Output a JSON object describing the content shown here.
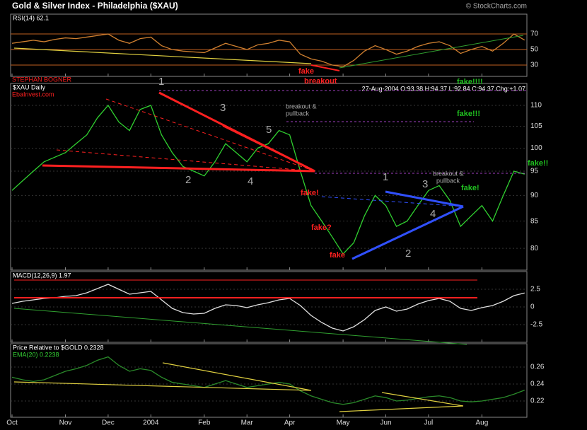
{
  "header": {
    "title": "Gold & Silver Index - Philadelphia ($XAU)",
    "copyright": "© StockCharts.com"
  },
  "annotations": [
    "STEPHAN BOGNER",
    "EbaInvest.com",
    "1",
    "2",
    "3",
    "4",
    "5",
    "breakout &",
    "pullback",
    "1",
    "2",
    "3",
    "4",
    "breakout &",
    "pullback",
    "fake",
    "breakout",
    "fake!",
    "fake?",
    "fake",
    "fake!!!!",
    "fake!!!",
    "fake!!",
    "fake!"
  ],
  "chart_data": [
    {
      "type": "line",
      "title": "RSI(14) 62.1",
      "categories": [
        "Oct",
        null,
        null,
        null,
        null,
        "Nov",
        null,
        null,
        null,
        "Dec",
        null,
        null,
        null,
        "2004",
        null,
        null,
        null,
        null,
        "Feb",
        null,
        null,
        null,
        "Mar",
        null,
        null,
        null,
        "Apr",
        null,
        null,
        null,
        null,
        "May",
        null,
        null,
        null,
        "Jun",
        null,
        null,
        null,
        "Jul",
        null,
        null,
        null,
        null,
        "Aug",
        null,
        null,
        null,
        null
      ],
      "series": [
        {
          "color": "#d08030",
          "values": [
            58,
            60,
            62,
            60,
            63,
            65,
            64,
            66,
            68,
            70,
            62,
            58,
            64,
            66,
            55,
            50,
            48,
            47,
            46,
            52,
            58,
            54,
            50,
            56,
            58,
            62,
            60,
            44,
            38,
            35,
            30,
            28,
            36,
            48,
            55,
            50,
            44,
            48,
            54,
            58,
            60,
            55,
            45,
            50,
            54,
            48,
            58,
            70,
            62.1
          ]
        }
      ],
      "ylim": [
        15.5,
        95.5
      ],
      "yticks": [
        30,
        50,
        70
      ]
    },
    {
      "type": "line",
      "title": "$XAU Daily",
      "subtitle": "27-Aug-2004 O:93.38 H:94.37 L:92.84 C:94.37 Chg:+1.07",
      "categories": [
        "Oct",
        null,
        null,
        null,
        null,
        "Nov",
        null,
        null,
        null,
        "Dec",
        null,
        null,
        null,
        "2004",
        null,
        null,
        null,
        null,
        "Feb",
        null,
        null,
        null,
        "Mar",
        null,
        null,
        null,
        "Apr",
        null,
        null,
        null,
        null,
        "May",
        null,
        null,
        null,
        "Jun",
        null,
        null,
        null,
        "Jul",
        null,
        null,
        null,
        null,
        "Aug",
        null,
        null,
        null,
        null
      ],
      "series": [
        {
          "color": "#30d030",
          "values": [
            91,
            93,
            95,
            97,
            98,
            99,
            101,
            103,
            107,
            110,
            106,
            104,
            109,
            110,
            103,
            99,
            96,
            95,
            94,
            97,
            101,
            99,
            97,
            100,
            101,
            104,
            103,
            95,
            88,
            85,
            82,
            79,
            81,
            86,
            90,
            88,
            84,
            85,
            88,
            91,
            92,
            89,
            84,
            86,
            88,
            85,
            90,
            95,
            94.37
          ]
        }
      ],
      "ylim": [
        76.2,
        115.5
      ],
      "log": true,
      "yticks": [
        80,
        85,
        90,
        95,
        100,
        105,
        110
      ]
    },
    {
      "type": "line",
      "title": "MACD(12,26,9) 1.97",
      "categories": [
        "Oct",
        null,
        null,
        null,
        null,
        "Nov",
        null,
        null,
        null,
        "Dec",
        null,
        null,
        null,
        "2004",
        null,
        null,
        null,
        null,
        "Feb",
        null,
        null,
        null,
        "Mar",
        null,
        null,
        null,
        "Apr",
        null,
        null,
        null,
        null,
        "May",
        null,
        null,
        null,
        "Jun",
        null,
        null,
        null,
        "Jul",
        null,
        null,
        null,
        null,
        "Aug",
        null,
        null,
        null,
        null
      ],
      "series": [
        {
          "color": "#e0e0e0",
          "values": [
            0.5,
            0.8,
            1.0,
            1.2,
            1.3,
            1.5,
            1.6,
            2.0,
            2.6,
            3.2,
            2.5,
            1.8,
            2.0,
            2.2,
            1.0,
            -0.2,
            -0.8,
            -1.0,
            -0.9,
            -0.2,
            0.3,
            0.2,
            -0.1,
            0.3,
            0.6,
            1.0,
            1.2,
            0.2,
            -1.2,
            -2.2,
            -3.0,
            -3.4,
            -2.8,
            -1.8,
            -0.5,
            0.0,
            -0.6,
            -0.3,
            0.4,
            0.9,
            1.2,
            0.8,
            -0.2,
            -0.5,
            -0.1,
            0.2,
            0.8,
            1.6,
            1.97
          ]
        }
      ],
      "ylim": [
        -5,
        5
      ],
      "yticks": [
        -2.5,
        0,
        2.5
      ]
    },
    {
      "type": "line",
      "title": "Price Relative to $GOLD 0.2328",
      "subtitle": "EMA(20) 0.2238",
      "categories": [
        "Oct",
        null,
        null,
        null,
        null,
        "Nov",
        null,
        null,
        null,
        "Dec",
        null,
        null,
        null,
        "2004",
        null,
        null,
        null,
        null,
        "Feb",
        null,
        null,
        null,
        "Mar",
        null,
        null,
        null,
        "Apr",
        null,
        null,
        null,
        null,
        "May",
        null,
        null,
        null,
        "Jun",
        null,
        null,
        null,
        "Jul",
        null,
        null,
        null,
        null,
        "Aug",
        null,
        null,
        null,
        null
      ],
      "series": [
        {
          "color": "#2a8a2a",
          "values": [
            0.248,
            0.245,
            0.243,
            0.245,
            0.25,
            0.255,
            0.258,
            0.262,
            0.268,
            0.272,
            0.262,
            0.255,
            0.258,
            0.256,
            0.248,
            0.242,
            0.24,
            0.238,
            0.236,
            0.24,
            0.244,
            0.24,
            0.236,
            0.238,
            0.24,
            0.242,
            0.24,
            0.232,
            0.226,
            0.222,
            0.218,
            0.216,
            0.218,
            0.222,
            0.226,
            0.224,
            0.22,
            0.221,
            0.223,
            0.225,
            0.226,
            0.224,
            0.22,
            0.219,
            0.22,
            0.222,
            0.224,
            0.228,
            0.2328
          ]
        }
      ],
      "ylim": [
        0.2008,
        0.2875
      ],
      "yticks": [
        0.22,
        0.24,
        0.26
      ]
    }
  ]
}
